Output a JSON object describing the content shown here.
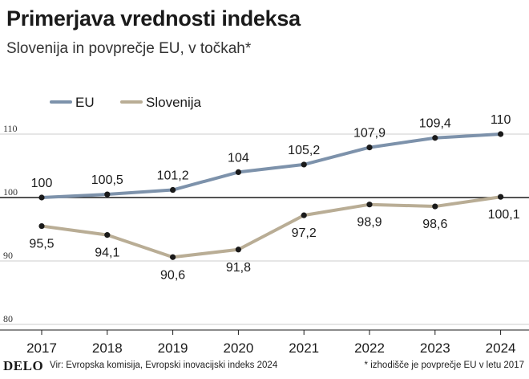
{
  "header": {
    "title": "Primerjava vrednosti indeksa",
    "subtitle": "Slovenija in povprečje EU, v točkah*"
  },
  "footer": {
    "logo": "DELO",
    "source": "Vir: Evropska komisija, Evropski inovacijski indeks 2024",
    "note": "* izhodišče je povprečje EU v letu 2017"
  },
  "chart_data": {
    "type": "line",
    "x": [
      "2017",
      "2018",
      "2019",
      "2020",
      "2021",
      "2022",
      "2023",
      "2024"
    ],
    "series": [
      {
        "name": "EU",
        "values": [
          100,
          100.5,
          101.2,
          104,
          105.2,
          107.9,
          109.4,
          110
        ],
        "labels": [
          "100",
          "100,5",
          "101,2",
          "104",
          "105,2",
          "107,9",
          "109,4",
          "110"
        ],
        "color": "#7d92ab"
      },
      {
        "name": "Slovenija",
        "values": [
          95.5,
          94.1,
          90.6,
          91.8,
          97.2,
          98.9,
          98.6,
          100.1
        ],
        "labels": [
          "95,5",
          "94,1",
          "90,6",
          "91,8",
          "97,2",
          "98,9",
          "98,6",
          "100,1"
        ],
        "color": "#b9ad95"
      }
    ],
    "yticks": [
      80,
      90,
      100,
      110
    ],
    "ylim": [
      80,
      110
    ],
    "legend_position": "top-left",
    "grid": true
  }
}
